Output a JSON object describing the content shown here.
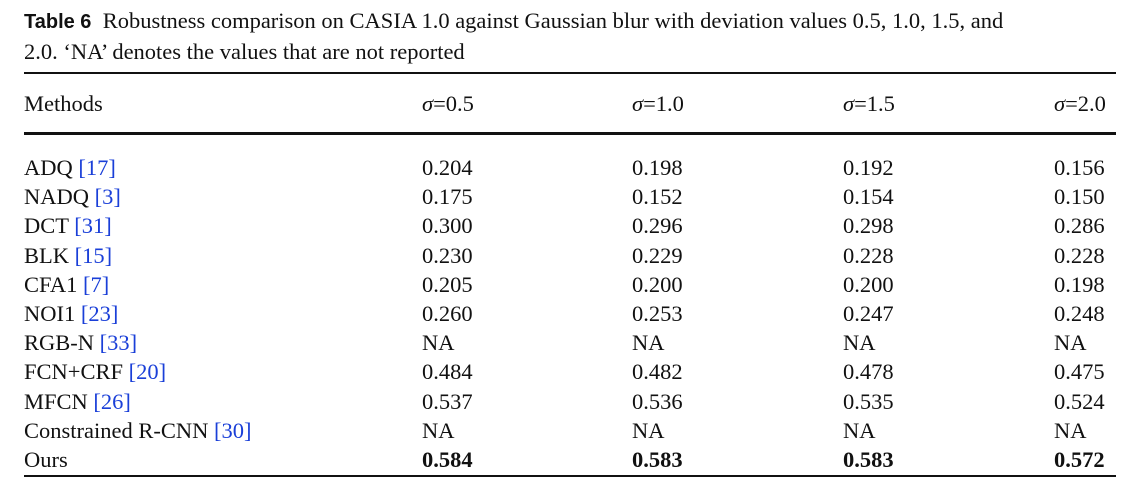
{
  "caption": {
    "label": "Table 6",
    "text_line1": "Robustness comparison on CASIA 1.0 against Gaussian blur with deviation values 0.5, 1.0, 1.5, and",
    "text_line2": "2.0. ‘NA’ denotes the values that are not reported"
  },
  "header": {
    "methods": "Methods",
    "cols": [
      {
        "sym": "σ",
        "val": "=0.5"
      },
      {
        "sym": "σ",
        "val": "=1.0"
      },
      {
        "sym": "σ",
        "val": "=1.5"
      },
      {
        "sym": "σ",
        "val": "=2.0"
      }
    ]
  },
  "rows": [
    {
      "name": "ADQ ",
      "ref": "[17]",
      "values": [
        "0.204",
        "0.198",
        "0.192",
        "0.156"
      ],
      "bold": false
    },
    {
      "name": "NADQ ",
      "ref": "[3]",
      "values": [
        "0.175",
        "0.152",
        "0.154",
        "0.150"
      ],
      "bold": false
    },
    {
      "name": "DCT ",
      "ref": "[31]",
      "values": [
        "0.300",
        "0.296",
        "0.298",
        "0.286"
      ],
      "bold": false
    },
    {
      "name": "BLK ",
      "ref": "[15]",
      "values": [
        "0.230",
        "0.229",
        "0.228",
        "0.228"
      ],
      "bold": false
    },
    {
      "name": "CFA1 ",
      "ref": "[7]",
      "values": [
        "0.205",
        "0.200",
        "0.200",
        "0.198"
      ],
      "bold": false
    },
    {
      "name": "NOI1 ",
      "ref": "[23]",
      "values": [
        "0.260",
        "0.253",
        "0.247",
        "0.248"
      ],
      "bold": false
    },
    {
      "name": "RGB-N ",
      "ref": "[33]",
      "values": [
        "NA",
        "NA",
        "NA",
        "NA"
      ],
      "bold": false
    },
    {
      "name": "FCN+CRF ",
      "ref": "[20]",
      "values": [
        "0.484",
        "0.482",
        "0.478",
        "0.475"
      ],
      "bold": false
    },
    {
      "name": "MFCN ",
      "ref": "[26]",
      "values": [
        "0.537",
        "0.536",
        "0.535",
        "0.524"
      ],
      "bold": false
    },
    {
      "name": "Constrained R-CNN ",
      "ref": "[30]",
      "values": [
        "NA",
        "NA",
        "NA",
        "NA"
      ],
      "bold": false
    },
    {
      "name": "Ours",
      "ref": "",
      "values": [
        "0.584",
        "0.583",
        "0.583",
        "0.572"
      ],
      "bold": true
    }
  ],
  "colors": {
    "text": "#111111",
    "reference_link": "#1a3fd8"
  }
}
